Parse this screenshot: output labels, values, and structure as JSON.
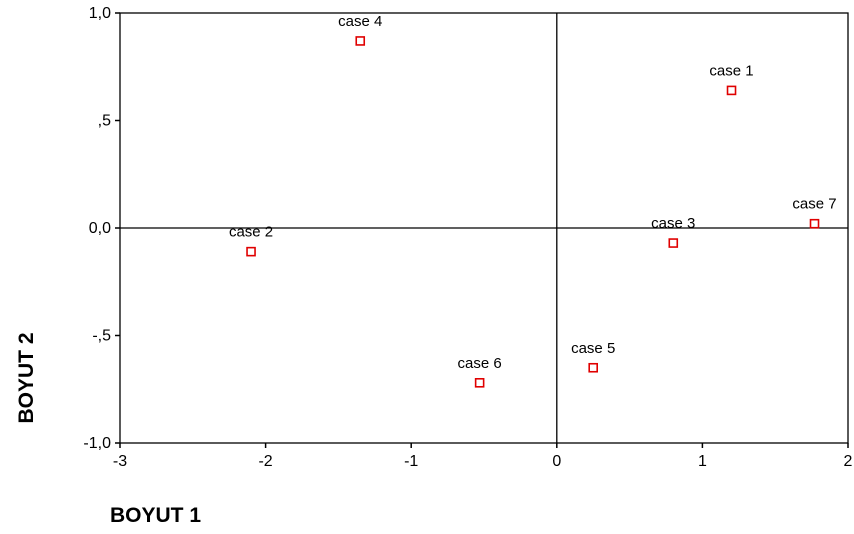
{
  "chart_data": {
    "type": "scatter",
    "xlabel": "BOYUT 1",
    "ylabel": "BOYUT 2",
    "xlim": [
      -3,
      2
    ],
    "ylim": [
      -1.0,
      1.0
    ],
    "x_ticks": [
      -3,
      -2,
      -1,
      0,
      1,
      2
    ],
    "x_tick_labels": [
      "-3",
      "-2",
      "-1",
      "0",
      "1",
      "2"
    ],
    "y_ticks": [
      1.0,
      0.5,
      0.0,
      -0.5,
      -1.0
    ],
    "y_tick_labels": [
      "1,0",
      ",5",
      "0,0",
      "-,5",
      "-1,0"
    ],
    "reference_lines": {
      "x": 0,
      "y": 0
    },
    "grid": false,
    "legend": "none",
    "marker": {
      "shape": "open-square",
      "color": "#e00000"
    },
    "points": [
      {
        "label": "case 1",
        "x": 1.2,
        "y": 0.64
      },
      {
        "label": "case 2",
        "x": -2.1,
        "y": -0.11
      },
      {
        "label": "case 3",
        "x": 0.8,
        "y": -0.07
      },
      {
        "label": "case 4",
        "x": -1.35,
        "y": 0.87
      },
      {
        "label": "case 5",
        "x": 0.25,
        "y": -0.65
      },
      {
        "label": "case 6",
        "x": -0.53,
        "y": -0.72
      },
      {
        "label": "case 7",
        "x": 1.77,
        "y": 0.02
      }
    ]
  }
}
